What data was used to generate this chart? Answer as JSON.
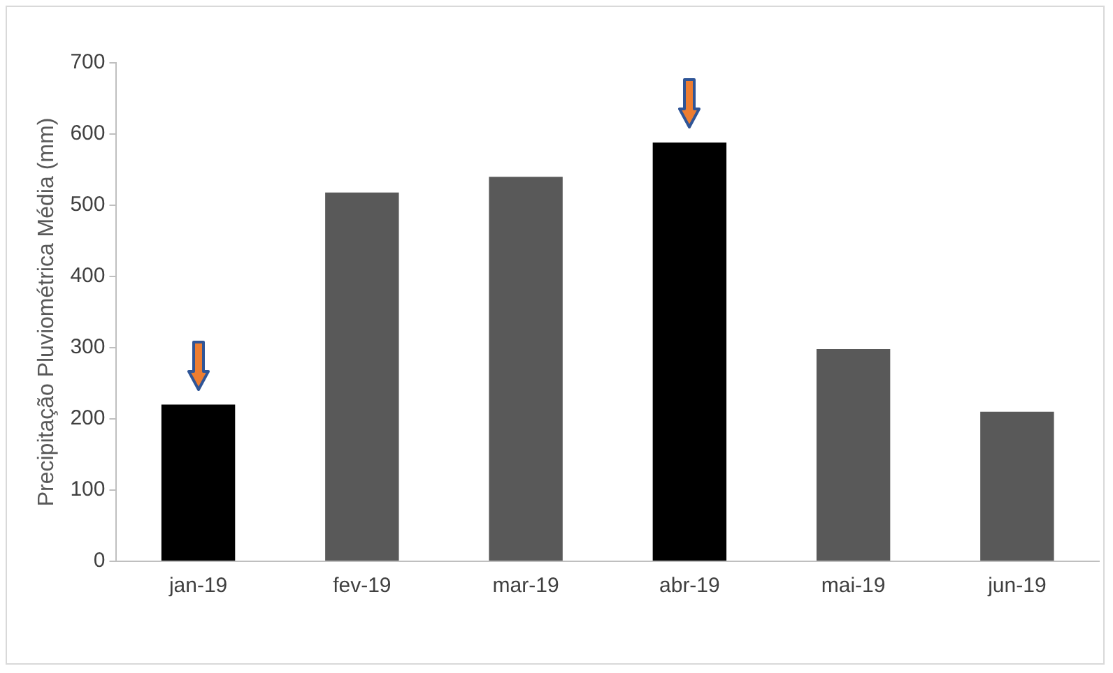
{
  "chart_data": {
    "type": "bar",
    "ylabel": "Precipitação Pluviométrica Média (mm)",
    "categories": [
      "jan-19",
      "fev-19",
      "mar-19",
      "abr-19",
      "mai-19",
      "jun-19"
    ],
    "values": [
      220,
      518,
      540,
      588,
      298,
      210
    ],
    "colors": [
      "#000000",
      "#595959",
      "#595959",
      "#000000",
      "#595959",
      "#595959"
    ],
    "ylim": [
      0,
      700
    ],
    "yticks": [
      0,
      100,
      200,
      300,
      400,
      500,
      600,
      700
    ],
    "grid": false,
    "legend": false
  }
}
